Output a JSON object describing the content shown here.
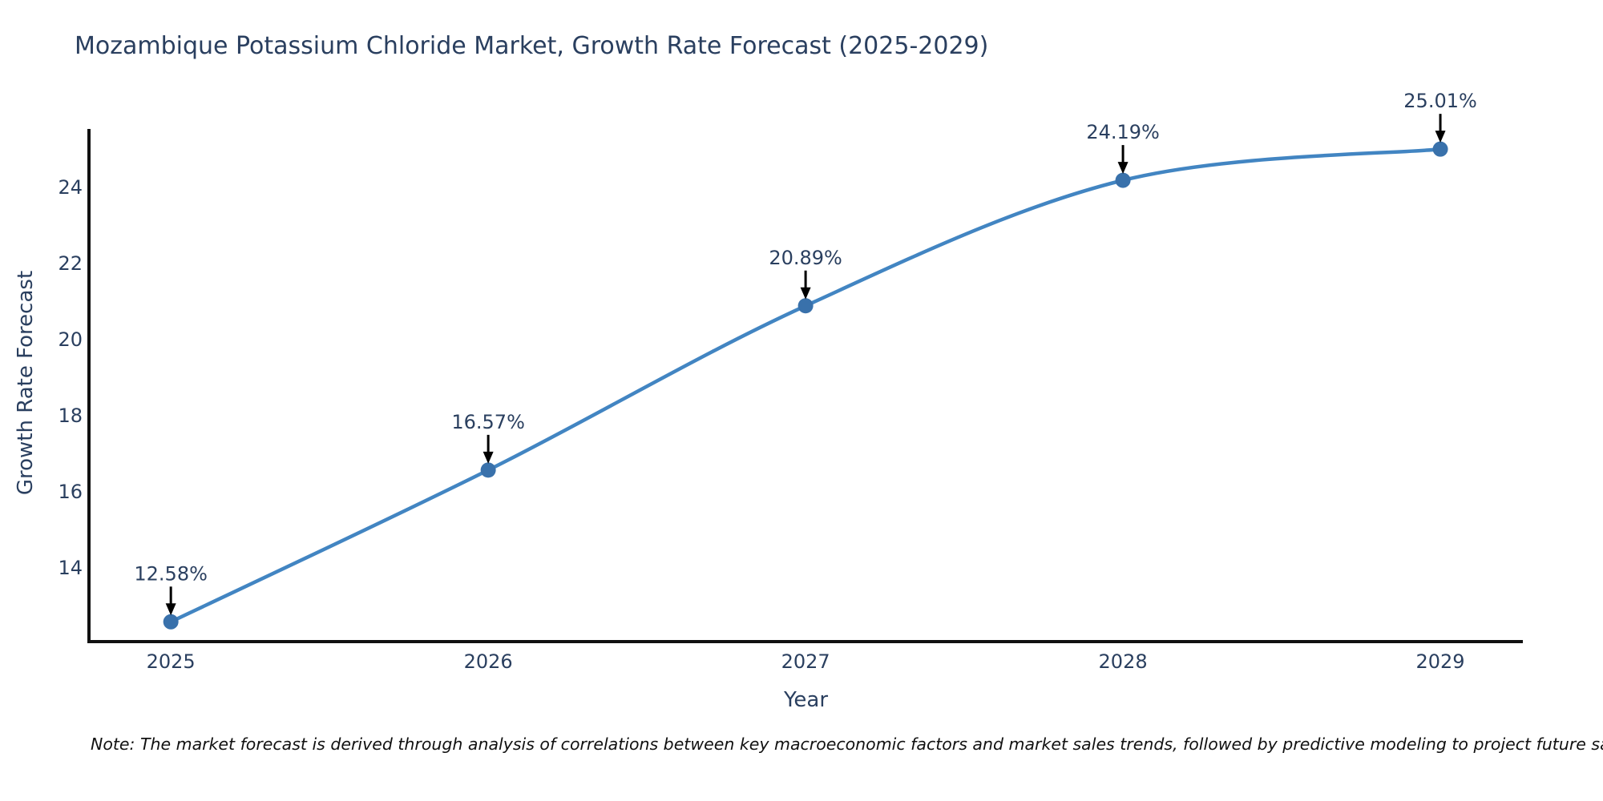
{
  "title": "Mozambique Potassium Chloride Market, Growth Rate Forecast (2025-2029)",
  "note": "Note: The market forecast is derived through analysis of correlations between key macroeconomic factors and market sales trends, followed by predictive modeling to project future sales",
  "chart_data": {
    "type": "line",
    "title": "Mozambique Potassium Chloride Market, Growth Rate Forecast (2025-2029)",
    "x": [
      2025,
      2026,
      2027,
      2028,
      2029
    ],
    "series": [
      {
        "name": "Growth Rate Forecast",
        "values": [
          12.58,
          16.57,
          20.89,
          24.19,
          25.01
        ]
      }
    ],
    "point_labels": [
      "12.58%",
      "16.57%",
      "20.89%",
      "24.19%",
      "25.01%"
    ],
    "xlabel": "Year",
    "ylabel": "Growth Rate Forecast",
    "yticks": [
      14,
      16,
      18,
      20,
      22,
      24
    ],
    "xticks": [
      "2025",
      "2026",
      "2027",
      "2028",
      "2029"
    ],
    "xlim": [
      2024.742,
      2029.26
    ],
    "ylim": [
      12.06,
      25.54
    ],
    "grid": false,
    "legend": "none",
    "line_shape": "spline",
    "colors": {
      "line": "#4285c2",
      "marker": "#3971ab",
      "axis": "#111111",
      "tick_text": "#2a3f5f",
      "annotation_text": "#2a3f5f",
      "arrow": "#000000",
      "background": "#ffffff"
    }
  }
}
